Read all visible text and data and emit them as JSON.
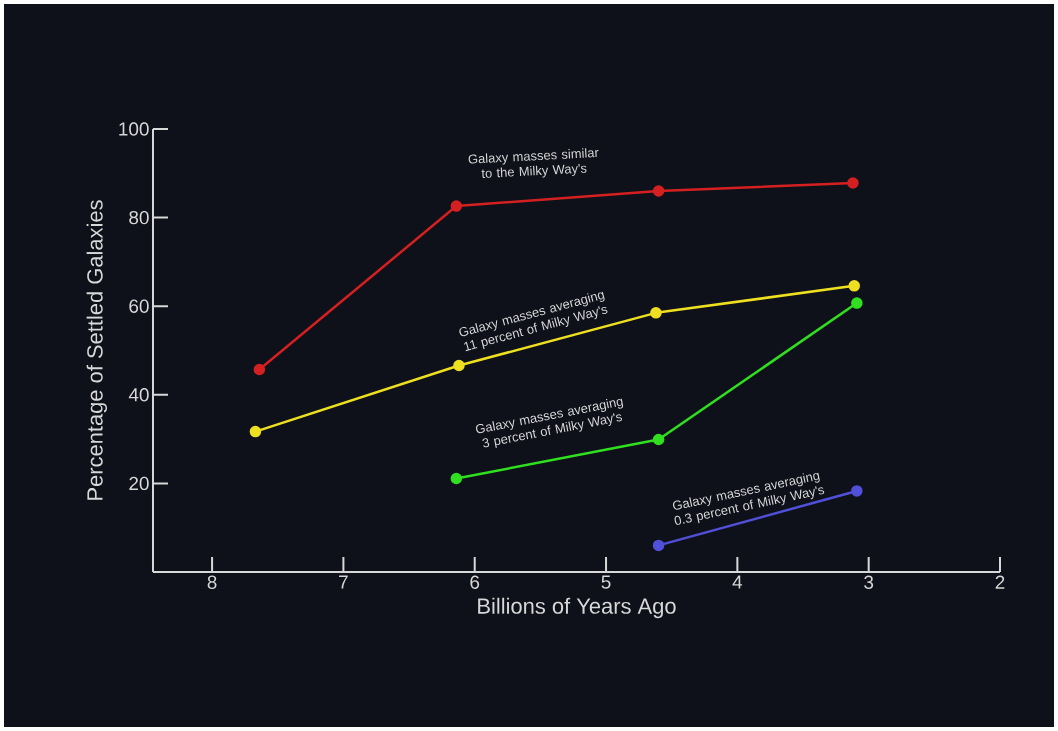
{
  "chart_data": {
    "type": "line",
    "xlabel": "Billions of Years Ago",
    "ylabel": "Percentage of Settled Galaxies",
    "xlim": [
      8.45,
      2
    ],
    "ylim": [
      0,
      100
    ],
    "xticks": [
      8,
      7,
      6,
      5,
      4,
      3,
      2
    ],
    "yticks": [
      20,
      40,
      60,
      80,
      100
    ],
    "marker": "circle",
    "line_style": "solid",
    "series": [
      {
        "name": "Galaxy masses similar to the Milky Way's",
        "color": "#d42020",
        "x": [
          7.64,
          6.14,
          4.6,
          3.12
        ],
        "values": [
          45.7,
          82.6,
          86.0,
          87.8
        ]
      },
      {
        "name": "Galaxy masses averaging 11 percent of Milky Way's",
        "color": "#eee020",
        "x": [
          7.67,
          6.12,
          4.62,
          3.11
        ],
        "values": [
          31.7,
          46.6,
          58.5,
          64.6
        ]
      },
      {
        "name": "Galaxy masses averaging 3 percent of Milky Way's",
        "color": "#30e020",
        "x": [
          6.14,
          4.6,
          3.09
        ],
        "values": [
          21.1,
          29.9,
          60.7
        ]
      },
      {
        "name": "Galaxy masses averaging 0.3 percent of Milky Way's",
        "color": "#5050d8",
        "x": [
          4.6,
          3.09
        ],
        "values": [
          6.0,
          18.3
        ]
      }
    ]
  }
}
